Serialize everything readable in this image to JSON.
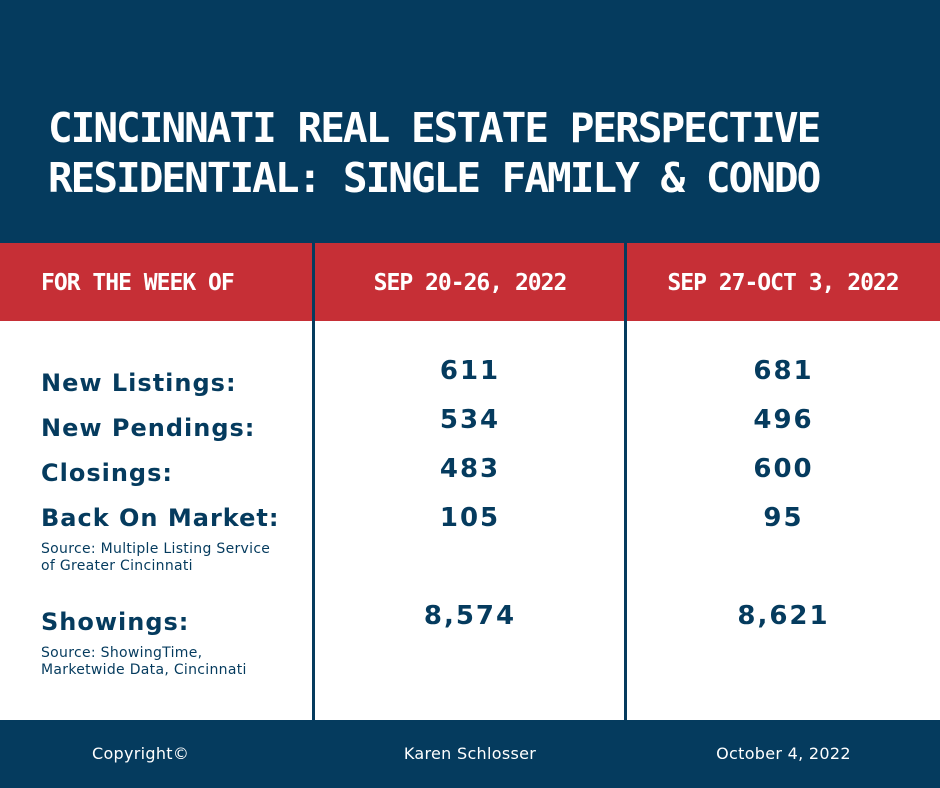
{
  "header": {
    "title_line1": "CINCINNATI REAL ESTATE PERSPECTIVE",
    "title_line2": "RESIDENTIAL: SINGLE FAMILY & CONDO"
  },
  "table": {
    "header_label": "FOR THE WEEK OF",
    "columns": [
      "SEP 20-26, 2022",
      "SEP 27-OCT 3, 2022"
    ],
    "rows": [
      {
        "label": "New Listings:",
        "values": [
          "611",
          "681"
        ]
      },
      {
        "label": "New Pendings:",
        "values": [
          "534",
          "496"
        ]
      },
      {
        "label": "Closings:",
        "values": [
          "483",
          "600"
        ]
      },
      {
        "label": "Back On Market:",
        "values": [
          "105",
          "95"
        ]
      },
      {
        "label": "Showings:",
        "values": [
          "8,574",
          "8,621"
        ]
      }
    ],
    "source_mls": [
      "Source: Multiple Listing Service",
      "of Greater Cincinnati"
    ],
    "source_showings": [
      "Source: ShowingTime,",
      "Marketwide Data, Cincinnati"
    ]
  },
  "footer": {
    "copyright": "Copyright©",
    "author": "Karen Schlosser",
    "date": "October 4, 2022"
  },
  "colors": {
    "navy": "#053b5e",
    "red": "#c62f36",
    "white": "#ffffff"
  }
}
